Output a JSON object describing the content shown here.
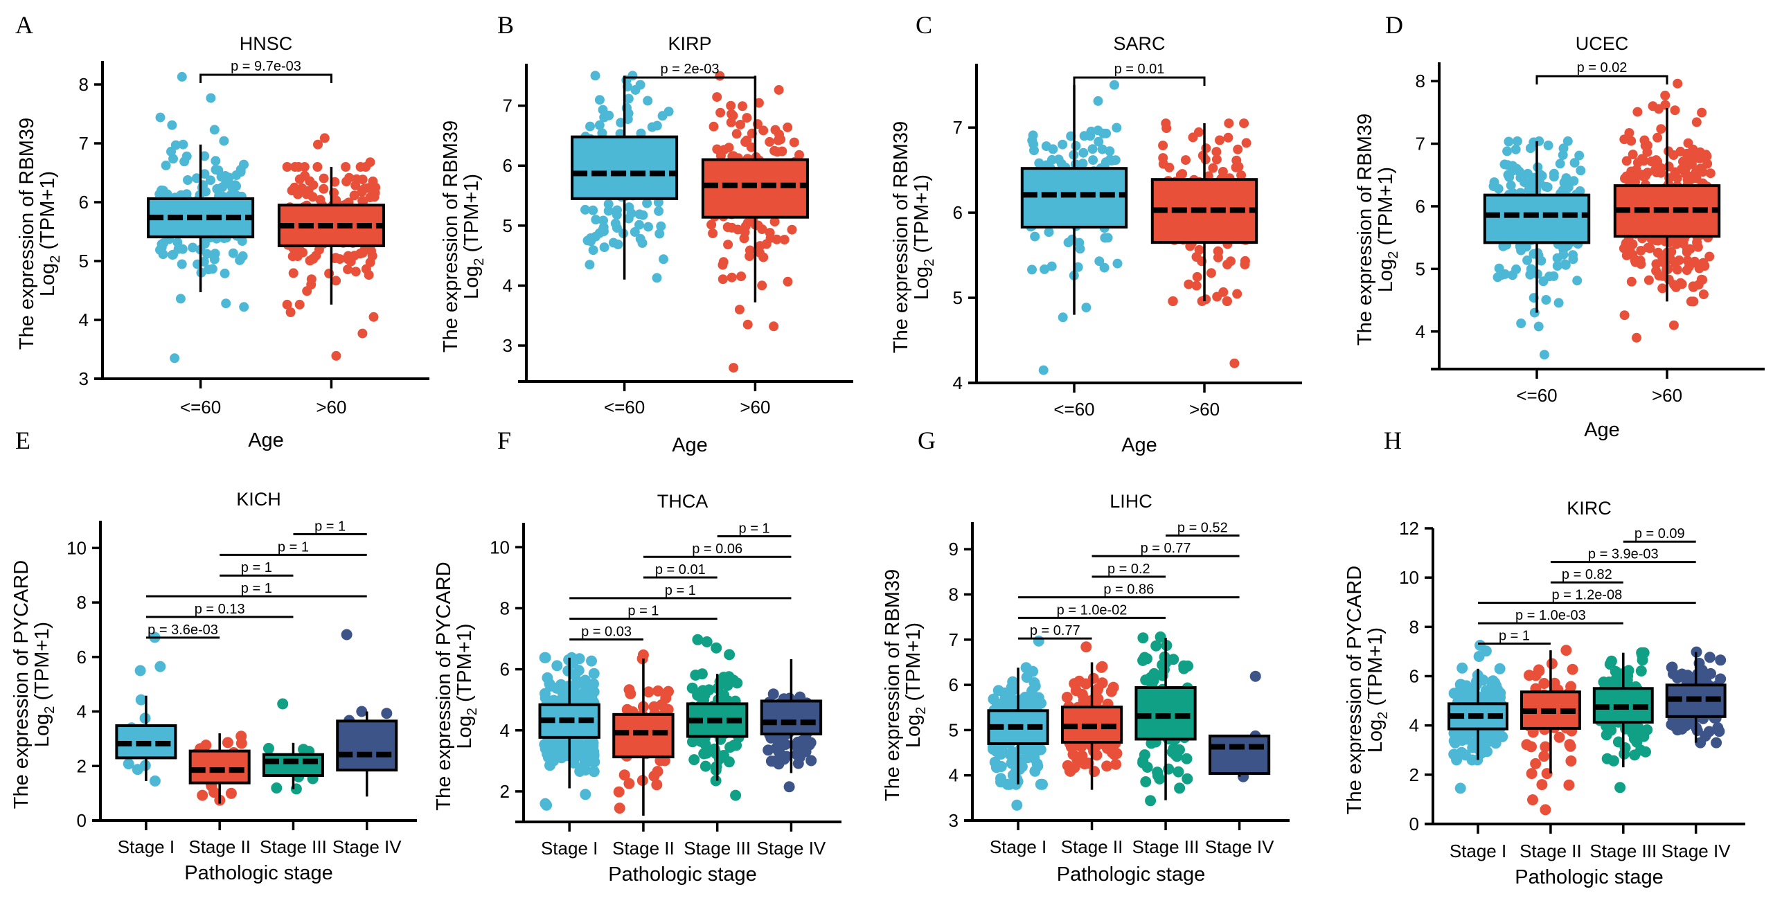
{
  "figure": {
    "colors": {
      "stage_i": "#4DB8D6",
      "stage_ii": "#E8503A",
      "stage_iii": "#0FA085",
      "stage_iv": "#3C5488",
      "age_le60": "#4DB8D6",
      "age_gt60": "#E8503A"
    }
  },
  "chart_data": [
    {
      "panel": "A",
      "type": "box",
      "title": "HNSC",
      "xlabel": "Age",
      "ylabel_line1": "The expression of RBM39",
      "ylabel_line2_prefix": "Log",
      "ylabel_line2_sub": "2",
      "ylabel_line2_suffix": " (TPM+1)",
      "ylim": [
        3,
        8.4
      ],
      "yticks": [
        3,
        4,
        5,
        6,
        7,
        8
      ],
      "categories": [
        "<=60",
        ">60"
      ],
      "series": [
        {
          "name": "<=60",
          "color": "#4DB8D6",
          "q1": 5.41,
          "median": 5.74,
          "q3": 6.06,
          "whisker_low": 4.47,
          "whisker_high": 6.98,
          "n": 160,
          "outliers": [
            8.13,
            7.77,
            7.44,
            7.31,
            7.23,
            7.04,
            6.97,
            6.86,
            6.78,
            4.36,
            4.28,
            4.22,
            3.35
          ]
        },
        {
          "name": ">60",
          "color": "#E8503A",
          "q1": 5.26,
          "median": 5.6,
          "q3": 5.95,
          "whisker_low": 4.26,
          "whisker_high": 6.6,
          "n": 190,
          "outliers": [
            7.09,
            6.98,
            6.68,
            4.26,
            4.13,
            4.05,
            3.77,
            3.39
          ]
        }
      ],
      "comparisons": [
        {
          "from": 0,
          "to": 1,
          "label": "p = 9.7e-03"
        }
      ]
    },
    {
      "panel": "B",
      "type": "box",
      "title": "KIRP",
      "xlabel": "Age",
      "ylabel_line1": "The expression of RBM39",
      "ylabel_line2_prefix": "Log",
      "ylabel_line2_sub": "2",
      "ylabel_line2_suffix": " (TPM+1)",
      "ylim": [
        2.4,
        7.7
      ],
      "yticks": [
        3,
        4,
        5,
        6,
        7
      ],
      "categories": [
        "<=60",
        ">60"
      ],
      "series": [
        {
          "name": "<=60",
          "color": "#4DB8D6",
          "q1": 5.45,
          "median": 5.87,
          "q3": 6.48,
          "whisker_low": 4.1,
          "whisker_high": 7.5,
          "n": 110,
          "outliers": []
        },
        {
          "name": ">60",
          "color": "#E8503A",
          "q1": 5.14,
          "median": 5.67,
          "q3": 6.1,
          "whisker_low": 3.72,
          "whisker_high": 7.5,
          "n": 150,
          "outliers": [
            3.6,
            3.35,
            3.32,
            2.63
          ]
        }
      ],
      "comparisons": [
        {
          "from": 0,
          "to": 1,
          "label": "p = 2e-03"
        }
      ]
    },
    {
      "panel": "C",
      "type": "box",
      "title": "SARC",
      "xlabel": "Age",
      "ylabel_line1": "The expression of RBM39",
      "ylabel_line2_prefix": "Log",
      "ylabel_line2_sub": "2",
      "ylabel_line2_suffix": " (TPM+1)",
      "ylim": [
        4,
        7.75
      ],
      "yticks": [
        4,
        5,
        6,
        7
      ],
      "categories": [
        "<=60",
        ">60"
      ],
      "series": [
        {
          "name": "<=60",
          "color": "#4DB8D6",
          "q1": 5.83,
          "median": 6.21,
          "q3": 6.52,
          "whisker_low": 4.8,
          "whisker_high": 7.5,
          "n": 110,
          "outliers": [
            4.77,
            4.15
          ]
        },
        {
          "name": ">60",
          "color": "#E8503A",
          "q1": 5.65,
          "median": 6.03,
          "q3": 6.39,
          "whisker_low": 4.96,
          "whisker_high": 7.05,
          "n": 130,
          "outliers": [
            4.23
          ]
        }
      ],
      "comparisons": [
        {
          "from": 0,
          "to": 1,
          "label": "p = 0.01"
        }
      ]
    },
    {
      "panel": "D",
      "type": "box",
      "title": "UCEC",
      "xlabel": "Age",
      "ylabel_line1": "The expression of RBM39",
      "ylabel_line2_prefix": "Log",
      "ylabel_line2_sub": "2",
      "ylabel_line2_suffix": " (TPM+1)",
      "ylim": [
        3.4,
        8.3
      ],
      "yticks": [
        4,
        5,
        6,
        7,
        8
      ],
      "categories": [
        "<=60",
        ">60"
      ],
      "series": [
        {
          "name": "<=60",
          "color": "#4DB8D6",
          "q1": 5.42,
          "median": 5.86,
          "q3": 6.18,
          "whisker_low": 4.3,
          "whisker_high": 7.04,
          "n": 170,
          "outliers": [
            4.13,
            4.08,
            3.63
          ]
        },
        {
          "name": ">60",
          "color": "#E8503A",
          "q1": 5.52,
          "median": 5.94,
          "q3": 6.33,
          "whisker_low": 4.48,
          "whisker_high": 7.57,
          "n": 330,
          "outliers": [
            7.96,
            7.77,
            7.62,
            7.6,
            4.26,
            4.1,
            3.9
          ]
        }
      ],
      "comparisons": [
        {
          "from": 0,
          "to": 1,
          "label": "p = 0.02"
        }
      ]
    },
    {
      "panel": "E",
      "type": "box",
      "title": "KICH",
      "xlabel": "Pathologic stage",
      "ylabel_line1": "The expression of PYCARD",
      "ylabel_line2_prefix": "Log",
      "ylabel_line2_sub": "2",
      "ylabel_line2_suffix": " (TPM+1)",
      "ylim": [
        0,
        11
      ],
      "yticks": [
        0,
        2,
        4,
        6,
        8,
        10
      ],
      "categories": [
        "Stage I",
        "Stage II",
        "Stage III",
        "Stage IV"
      ],
      "series": [
        {
          "name": "Stage I",
          "color": "#4DB8D6",
          "q1": 2.3,
          "median": 2.82,
          "q3": 3.48,
          "whisker_low": 1.45,
          "whisker_high": 4.58,
          "n": 14,
          "outliers": [
            6.72,
            5.65,
            5.5
          ]
        },
        {
          "name": "Stage II",
          "color": "#E8503A",
          "q1": 1.38,
          "median": 1.85,
          "q3": 2.55,
          "whisker_low": 0.62,
          "whisker_high": 3.2,
          "n": 22,
          "outliers": []
        },
        {
          "name": "Stage III",
          "color": "#0FA085",
          "q1": 1.65,
          "median": 2.17,
          "q3": 2.42,
          "whisker_low": 1.15,
          "whisker_high": 2.85,
          "n": 12,
          "outliers": [
            4.28
          ]
        },
        {
          "name": "Stage IV",
          "color": "#3C5488",
          "q1": 1.85,
          "median": 2.42,
          "q3": 3.65,
          "whisker_low": 0.88,
          "whisker_high": 4.0,
          "n": 4,
          "outliers": [
            6.82
          ]
        }
      ],
      "comparisons": [
        {
          "from": 0,
          "to": 1,
          "label": "p = 3.6e-03"
        },
        {
          "from": 0,
          "to": 2,
          "label": "p = 0.13"
        },
        {
          "from": 0,
          "to": 3,
          "label": "p = 1"
        },
        {
          "from": 1,
          "to": 2,
          "label": "p = 1"
        },
        {
          "from": 1,
          "to": 3,
          "label": "p = 1"
        },
        {
          "from": 2,
          "to": 3,
          "label": "p = 1"
        }
      ]
    },
    {
      "panel": "F",
      "type": "box",
      "title": "THCA",
      "xlabel": "Pathologic stage",
      "ylabel_line1": "The expression of PYCARD",
      "ylabel_line2_prefix": "Log",
      "ylabel_line2_sub": "2",
      "ylabel_line2_suffix": " (TPM+1)",
      "ylim": [
        1.0,
        10.8
      ],
      "yticks": [
        2,
        4,
        6,
        8,
        10
      ],
      "categories": [
        "Stage I",
        "Stage II",
        "Stage III",
        "Stage IV"
      ],
      "series": [
        {
          "name": "Stage I",
          "color": "#4DB8D6",
          "q1": 3.77,
          "median": 4.33,
          "q3": 4.84,
          "whisker_low": 2.1,
          "whisker_high": 6.38,
          "n": 280,
          "outliers": [
            1.9,
            1.6,
            1.55
          ]
        },
        {
          "name": "Stage II",
          "color": "#E8503A",
          "q1": 3.13,
          "median": 3.92,
          "q3": 4.52,
          "whisker_low": 1.2,
          "whisker_high": 6.35,
          "n": 50,
          "outliers": [
            6.47
          ]
        },
        {
          "name": "Stage III",
          "color": "#0FA085",
          "q1": 3.8,
          "median": 4.32,
          "q3": 4.87,
          "whisker_low": 2.35,
          "whisker_high": 5.85,
          "n": 110,
          "outliers": [
            6.97,
            6.9,
            6.7,
            6.48,
            1.87
          ]
        },
        {
          "name": "Stage IV",
          "color": "#3C5488",
          "q1": 3.88,
          "median": 4.26,
          "q3": 4.96,
          "whisker_low": 2.6,
          "whisker_high": 6.33,
          "n": 60,
          "outliers": [
            2.15
          ]
        }
      ],
      "comparisons": [
        {
          "from": 0,
          "to": 1,
          "label": "p = 0.03"
        },
        {
          "from": 0,
          "to": 2,
          "label": "p = 1"
        },
        {
          "from": 0,
          "to": 3,
          "label": "p = 1"
        },
        {
          "from": 1,
          "to": 2,
          "label": "p = 0.01"
        },
        {
          "from": 1,
          "to": 3,
          "label": "p = 0.06"
        },
        {
          "from": 2,
          "to": 3,
          "label": "p = 1"
        }
      ]
    },
    {
      "panel": "G",
      "type": "box",
      "title": "LIHC",
      "xlabel": "Pathologic stage",
      "ylabel_line1": "The expression of RBM39",
      "ylabel_line2_prefix": "Log",
      "ylabel_line2_sub": "2",
      "ylabel_line2_suffix": " (TPM+1)",
      "ylim": [
        3,
        9.6
      ],
      "yticks": [
        3,
        4,
        5,
        6,
        7,
        8,
        9
      ],
      "categories": [
        "Stage I",
        "Stage II",
        "Stage III",
        "Stage IV"
      ],
      "series": [
        {
          "name": "Stage I",
          "color": "#4DB8D6",
          "q1": 4.7,
          "median": 5.07,
          "q3": 5.43,
          "whisker_low": 3.8,
          "whisker_high": 6.38,
          "n": 170,
          "outliers": [
            6.97,
            3.34
          ]
        },
        {
          "name": "Stage II",
          "color": "#E8503A",
          "q1": 4.73,
          "median": 5.08,
          "q3": 5.51,
          "whisker_low": 3.68,
          "whisker_high": 6.5,
          "n": 85,
          "outliers": [
            6.84
          ]
        },
        {
          "name": "Stage III",
          "color": "#0FA085",
          "q1": 4.8,
          "median": 5.31,
          "q3": 5.94,
          "whisker_low": 3.45,
          "whisker_high": 7.04,
          "n": 85,
          "outliers": [
            7.06,
            3.44
          ]
        },
        {
          "name": "Stage IV",
          "color": "#3C5488",
          "q1": 4.04,
          "median": 4.63,
          "q3": 4.87,
          "whisker_low": 3.97,
          "whisker_high": 4.87,
          "n": 4,
          "outliers": [
            6.19
          ]
        }
      ],
      "comparisons": [
        {
          "from": 0,
          "to": 1,
          "label": "p = 0.77"
        },
        {
          "from": 0,
          "to": 2,
          "label": "p = 1.0e-02"
        },
        {
          "from": 0,
          "to": 3,
          "label": "p = 0.86"
        },
        {
          "from": 1,
          "to": 2,
          "label": "p = 0.2"
        },
        {
          "from": 1,
          "to": 3,
          "label": "p = 0.77"
        },
        {
          "from": 2,
          "to": 3,
          "label": "p = 0.52"
        }
      ]
    },
    {
      "panel": "H",
      "type": "box",
      "title": "KIRC",
      "xlabel": "Pathologic stage",
      "ylabel_line1": "The expression of PYCARD",
      "ylabel_line2_prefix": "Log",
      "ylabel_line2_sub": "2",
      "ylabel_line2_suffix": " (TPM+1)",
      "ylim": [
        0,
        12
      ],
      "yticks": [
        0,
        2,
        4,
        6,
        8,
        10,
        12
      ],
      "categories": [
        "Stage I",
        "Stage II",
        "Stage III",
        "Stage IV"
      ],
      "series": [
        {
          "name": "Stage I",
          "color": "#4DB8D6",
          "q1": 3.86,
          "median": 4.38,
          "q3": 4.88,
          "whisker_low": 2.6,
          "whisker_high": 6.3,
          "n": 260,
          "outliers": [
            7.25,
            7.02,
            6.8,
            6.33,
            1.45
          ]
        },
        {
          "name": "Stage II",
          "color": "#E8503A",
          "q1": 3.88,
          "median": 4.58,
          "q3": 5.36,
          "whisker_low": 2.05,
          "whisker_high": 7.05,
          "n": 55,
          "outliers": [
            1.6,
            1.58,
            0.98,
            0.58
          ]
        },
        {
          "name": "Stage III",
          "color": "#0FA085",
          "q1": 4.13,
          "median": 4.75,
          "q3": 5.5,
          "whisker_low": 2.3,
          "whisker_high": 6.95,
          "n": 120,
          "outliers": [
            1.48
          ]
        },
        {
          "name": "Stage IV",
          "color": "#3C5488",
          "q1": 4.36,
          "median": 5.07,
          "q3": 5.64,
          "whisker_low": 3.3,
          "whisker_high": 6.98,
          "n": 80,
          "outliers": []
        }
      ],
      "comparisons": [
        {
          "from": 0,
          "to": 1,
          "label": "p = 1"
        },
        {
          "from": 0,
          "to": 2,
          "label": "p = 1.0e-03"
        },
        {
          "from": 0,
          "to": 3,
          "label": "p = 1.2e-08"
        },
        {
          "from": 1,
          "to": 2,
          "label": "p = 0.82"
        },
        {
          "from": 1,
          "to": 3,
          "label": "p = 3.9e-03"
        },
        {
          "from": 2,
          "to": 3,
          "label": "p = 0.09"
        }
      ]
    }
  ]
}
